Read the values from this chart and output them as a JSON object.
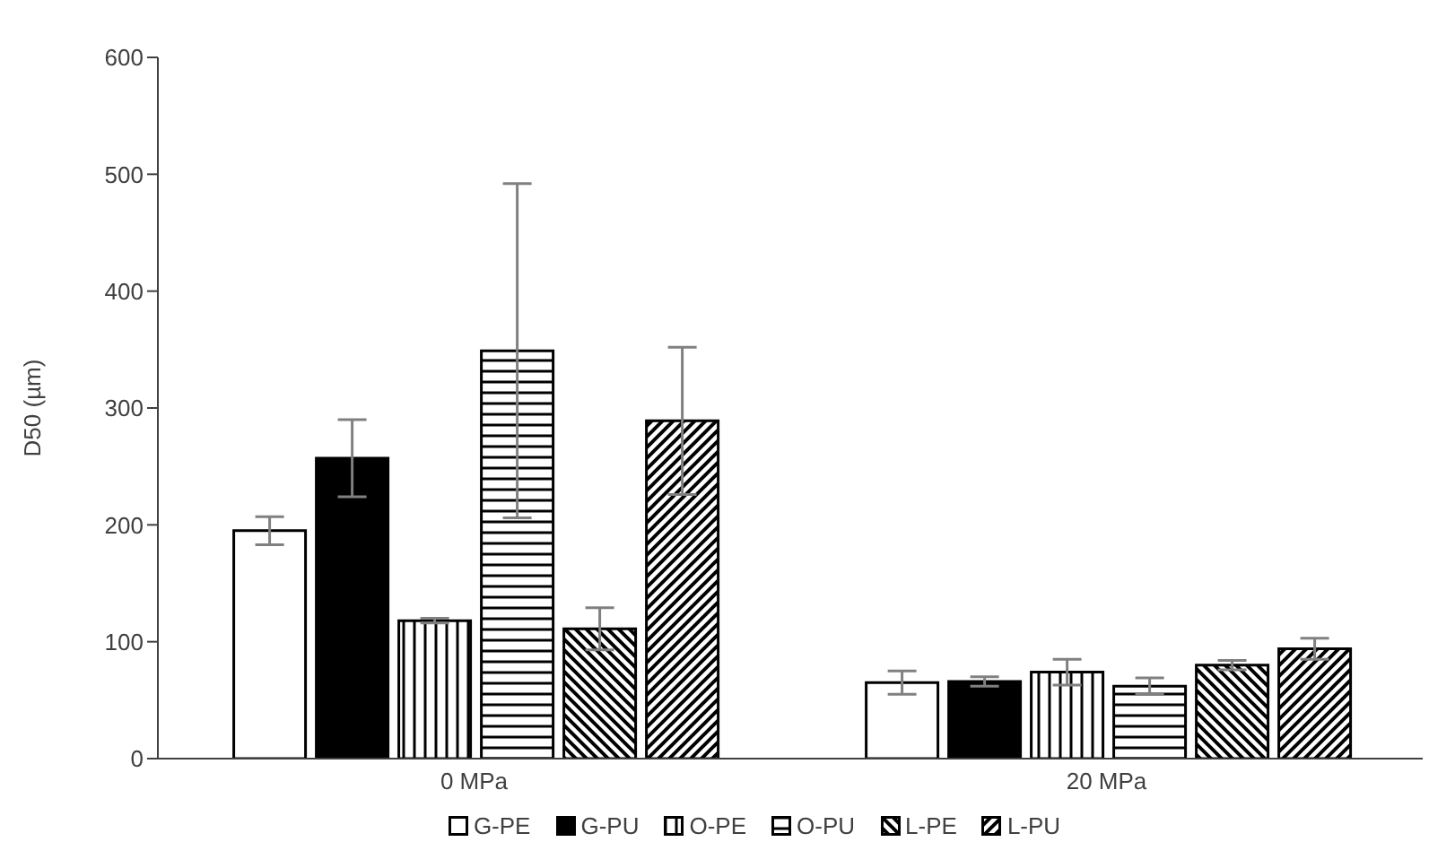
{
  "chart_data": {
    "type": "bar",
    "ylabel": "D50 (µm)",
    "categories": [
      "0 MPa",
      "20 MPa"
    ],
    "series": [
      {
        "name": "G-PE",
        "color": "#ffffff",
        "values": [
          195,
          65
        ],
        "errors": [
          12,
          10
        ]
      },
      {
        "name": "G-PU",
        "color": "#000000",
        "values": [
          257,
          66
        ],
        "errors": [
          33,
          4
        ]
      },
      {
        "name": "O-PE",
        "color": "#000000",
        "values": [
          118,
          74
        ],
        "errors": [
          2,
          11
        ]
      },
      {
        "name": "O-PU",
        "color": "#000000",
        "values": [
          349,
          62
        ],
        "errors": [
          143,
          7
        ]
      },
      {
        "name": "L-PE",
        "color": "#000000",
        "values": [
          111,
          80
        ],
        "errors": [
          18,
          4
        ]
      },
      {
        "name": "L-PU",
        "color": "#000000",
        "values": [
          289,
          94
        ],
        "errors": [
          63,
          9
        ]
      }
    ],
    "ylim": [
      0,
      600
    ],
    "yticks": [
      0,
      100,
      200,
      300,
      400,
      500,
      600
    ],
    "grid": false,
    "legend": "bottom"
  }
}
